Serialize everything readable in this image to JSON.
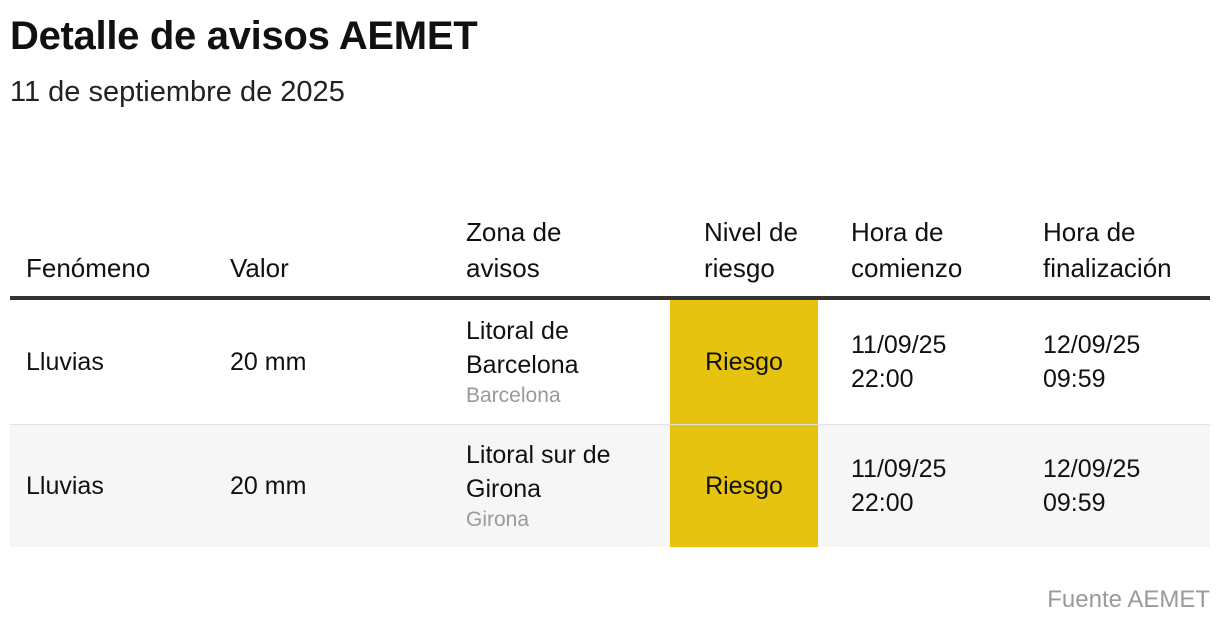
{
  "title": "Detalle de avisos AEMET",
  "subtitle": "11 de septiembre de 2025",
  "table": {
    "headers": {
      "phenomenon": "Fenómeno",
      "value": "Valor",
      "zone": "Zona de avisos",
      "level": "Nivel de riesgo",
      "start": "Hora de comienzo",
      "end": "Hora de finalización"
    },
    "rows": [
      {
        "phenomenon": "Lluvias",
        "value": "20 mm",
        "zone": "Litoral de Barcelona",
        "province": "Barcelona",
        "level": "Riesgo",
        "level_color": "#e6c30f",
        "start": "11/09/25 22:00",
        "end": "12/09/25 09:59"
      },
      {
        "phenomenon": "Lluvias",
        "value": "20 mm",
        "zone": "Litoral sur de Girona",
        "province": "Girona",
        "level": "Riesgo",
        "level_color": "#e6c30f",
        "start": "11/09/25 22:00",
        "end": "12/09/25 09:59"
      }
    ]
  },
  "source": "Fuente AEMET"
}
